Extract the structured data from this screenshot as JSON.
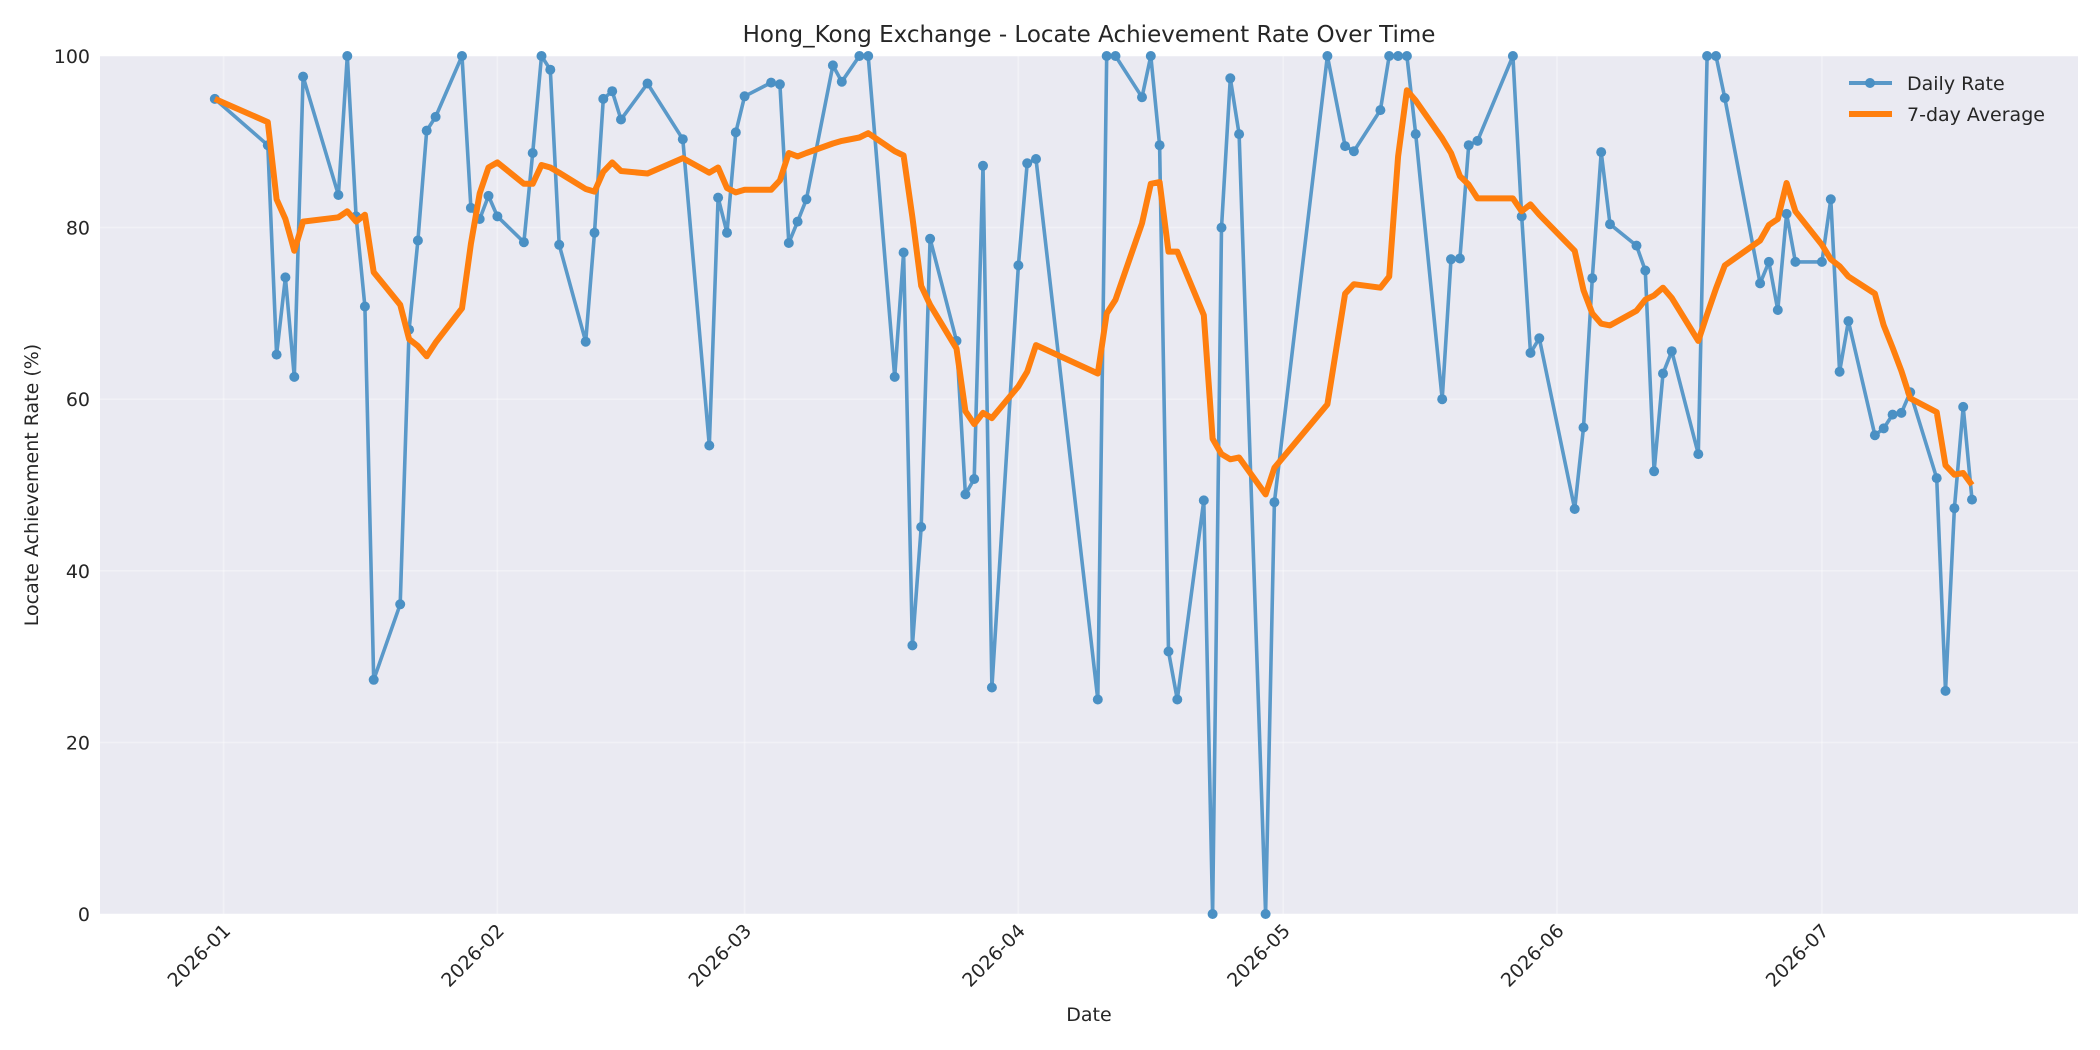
{
  "chart_data": {
    "type": "line",
    "title": "Hong_Kong Exchange - Locate Achievement Rate Over Time",
    "xlabel": "Date",
    "ylabel": "Locate Achievement Rate (%)",
    "xlim": [
      "2025-12-18",
      "2026-07-30"
    ],
    "ylim": [
      0,
      100
    ],
    "x_ticks": [
      "2026-01-01",
      "2026-02-01",
      "2026-03-01",
      "2026-04-01",
      "2026-05-01",
      "2026-06-01",
      "2026-07-01"
    ],
    "x_tick_labels": [
      "2026-01",
      "2026-02",
      "2026-03",
      "2026-04",
      "2026-05",
      "2026-06",
      "2026-07"
    ],
    "y_ticks": [
      0,
      20,
      40,
      60,
      80,
      100
    ],
    "y_tick_labels": [
      "0",
      "20",
      "40",
      "60",
      "80",
      "100"
    ],
    "grid": true,
    "legend": {
      "placement": "top-right",
      "entries": [
        "Daily Rate",
        "7-day Average"
      ]
    },
    "colors": {
      "daily": "#4a90c4",
      "average": "#ff7f0e",
      "background": "#eaeaf2"
    },
    "series": [
      {
        "name": "Daily Rate",
        "style": "line-with-markers",
        "points": [
          [
            "2025-12-31",
            95.0
          ],
          [
            "2026-01-06",
            89.6
          ],
          [
            "2026-01-07",
            65.2
          ],
          [
            "2026-01-08",
            74.2
          ],
          [
            "2026-01-09",
            62.6
          ],
          [
            "2026-01-10",
            97.6
          ],
          [
            "2026-01-14",
            83.8
          ],
          [
            "2026-01-15",
            100.0
          ],
          [
            "2026-01-16",
            81.3
          ],
          [
            "2026-01-17",
            70.8
          ],
          [
            "2026-01-18",
            27.3
          ],
          [
            "2026-01-21",
            36.1
          ],
          [
            "2026-01-22",
            68.1
          ],
          [
            "2026-01-23",
            78.5
          ],
          [
            "2026-01-24",
            91.3
          ],
          [
            "2026-01-25",
            92.9
          ],
          [
            "2026-01-28",
            100.0
          ],
          [
            "2026-01-29",
            82.3
          ],
          [
            "2026-01-30",
            81.0
          ],
          [
            "2026-01-31",
            83.7
          ],
          [
            "2026-02-01",
            81.3
          ],
          [
            "2026-02-04",
            78.3
          ],
          [
            "2026-02-05",
            88.7
          ],
          [
            "2026-02-06",
            100.0
          ],
          [
            "2026-02-07",
            98.4
          ],
          [
            "2026-02-08",
            78.0
          ],
          [
            "2026-02-11",
            66.7
          ],
          [
            "2026-02-12",
            79.4
          ],
          [
            "2026-02-13",
            95.0
          ],
          [
            "2026-02-14",
            95.9
          ],
          [
            "2026-02-15",
            92.6
          ],
          [
            "2026-02-18",
            96.8
          ],
          [
            "2026-02-22",
            90.3
          ],
          [
            "2026-02-25",
            54.6
          ],
          [
            "2026-02-26",
            83.5
          ],
          [
            "2026-02-27",
            79.4
          ],
          [
            "2026-02-28",
            91.1
          ],
          [
            "2026-03-01",
            95.3
          ],
          [
            "2026-03-04",
            96.9
          ],
          [
            "2026-03-05",
            96.7
          ],
          [
            "2026-03-06",
            78.2
          ],
          [
            "2026-03-07",
            80.7
          ],
          [
            "2026-03-08",
            83.3
          ],
          [
            "2026-03-11",
            98.9
          ],
          [
            "2026-03-12",
            97.0
          ],
          [
            "2026-03-14",
            100.0
          ],
          [
            "2026-03-15",
            100.0
          ],
          [
            "2026-03-18",
            62.6
          ],
          [
            "2026-03-19",
            77.1
          ],
          [
            "2026-03-20",
            31.3
          ],
          [
            "2026-03-21",
            45.1
          ],
          [
            "2026-03-22",
            78.7
          ],
          [
            "2026-03-25",
            66.8
          ],
          [
            "2026-03-26",
            48.9
          ],
          [
            "2026-03-27",
            50.7
          ],
          [
            "2026-03-28",
            87.2
          ],
          [
            "2026-03-29",
            26.4
          ],
          [
            "2026-04-01",
            75.6
          ],
          [
            "2026-04-02",
            87.5
          ],
          [
            "2026-04-03",
            88.0
          ],
          [
            "2026-04-10",
            25.0
          ],
          [
            "2026-04-11",
            100.0
          ],
          [
            "2026-04-12",
            100.0
          ],
          [
            "2026-04-15",
            95.2
          ],
          [
            "2026-04-16",
            100.0
          ],
          [
            "2026-04-17",
            89.6
          ],
          [
            "2026-04-18",
            30.6
          ],
          [
            "2026-04-19",
            25.0
          ],
          [
            "2026-04-22",
            48.2
          ],
          [
            "2026-04-23",
            0.0
          ],
          [
            "2026-04-24",
            80.0
          ],
          [
            "2026-04-25",
            97.4
          ],
          [
            "2026-04-26",
            90.9
          ],
          [
            "2026-04-29",
            0.0
          ],
          [
            "2026-04-30",
            48.0
          ],
          [
            "2026-05-06",
            100.0
          ],
          [
            "2026-05-08",
            89.5
          ],
          [
            "2026-05-09",
            88.9
          ],
          [
            "2026-05-12",
            93.7
          ],
          [
            "2026-05-13",
            100.0
          ],
          [
            "2026-05-14",
            100.0
          ],
          [
            "2026-05-15",
            100.0
          ],
          [
            "2026-05-16",
            90.9
          ],
          [
            "2026-05-19",
            60.0
          ],
          [
            "2026-05-20",
            76.3
          ],
          [
            "2026-05-21",
            76.4
          ],
          [
            "2026-05-22",
            89.6
          ],
          [
            "2026-05-23",
            90.1
          ],
          [
            "2026-05-27",
            100.0
          ],
          [
            "2026-05-28",
            81.3
          ],
          [
            "2026-05-29",
            65.4
          ],
          [
            "2026-05-30",
            67.1
          ],
          [
            "2026-06-03",
            47.2
          ],
          [
            "2026-06-04",
            56.7
          ],
          [
            "2026-06-05",
            74.1
          ],
          [
            "2026-06-06",
            88.8
          ],
          [
            "2026-06-07",
            80.4
          ],
          [
            "2026-06-10",
            77.9
          ],
          [
            "2026-06-11",
            75.0
          ],
          [
            "2026-06-12",
            51.6
          ],
          [
            "2026-06-13",
            63.0
          ],
          [
            "2026-06-14",
            65.6
          ],
          [
            "2026-06-17",
            53.6
          ],
          [
            "2026-06-18",
            100.0
          ],
          [
            "2026-06-19",
            100.0
          ],
          [
            "2026-06-20",
            95.1
          ],
          [
            "2026-06-24",
            73.5
          ],
          [
            "2026-06-25",
            76.0
          ],
          [
            "2026-06-26",
            70.4
          ],
          [
            "2026-06-27",
            81.6
          ],
          [
            "2026-06-28",
            76.0
          ],
          [
            "2026-07-01",
            76.0
          ],
          [
            "2026-07-02",
            83.3
          ],
          [
            "2026-07-03",
            63.2
          ],
          [
            "2026-07-04",
            69.1
          ],
          [
            "2026-07-07",
            55.8
          ],
          [
            "2026-07-08",
            56.6
          ],
          [
            "2026-07-09",
            58.2
          ],
          [
            "2026-07-10",
            58.4
          ],
          [
            "2026-07-11",
            60.8
          ],
          [
            "2026-07-14",
            50.8
          ],
          [
            "2026-07-15",
            26.0
          ],
          [
            "2026-07-16",
            47.3
          ],
          [
            "2026-07-17",
            59.1
          ],
          [
            "2026-07-18",
            48.3
          ]
        ]
      },
      {
        "name": "7-day Average",
        "style": "thick-line",
        "points": [
          [
            "2025-12-31",
            95.0
          ],
          [
            "2026-01-06",
            92.3
          ],
          [
            "2026-01-07",
            83.3
          ],
          [
            "2026-01-08",
            81.0
          ],
          [
            "2026-01-09",
            77.3
          ],
          [
            "2026-01-10",
            80.7
          ],
          [
            "2026-01-14",
            81.2
          ],
          [
            "2026-01-15",
            81.9
          ],
          [
            "2026-01-16",
            80.7
          ],
          [
            "2026-01-17",
            81.5
          ],
          [
            "2026-01-18",
            74.8
          ],
          [
            "2026-01-21",
            71.0
          ],
          [
            "2026-01-22",
            67.0
          ],
          [
            "2026-01-23",
            66.2
          ],
          [
            "2026-01-24",
            65.0
          ],
          [
            "2026-01-25",
            66.6
          ],
          [
            "2026-01-28",
            70.6
          ],
          [
            "2026-01-29",
            78.1
          ],
          [
            "2026-01-30",
            84.0
          ],
          [
            "2026-01-31",
            87.0
          ],
          [
            "2026-02-01",
            87.6
          ],
          [
            "2026-02-04",
            85.1
          ],
          [
            "2026-02-05",
            85.1
          ],
          [
            "2026-02-06",
            87.3
          ],
          [
            "2026-02-07",
            87.0
          ],
          [
            "2026-02-08",
            86.4
          ],
          [
            "2026-02-11",
            84.5
          ],
          [
            "2026-02-12",
            84.2
          ],
          [
            "2026-02-13",
            86.5
          ],
          [
            "2026-02-14",
            87.6
          ],
          [
            "2026-02-15",
            86.6
          ],
          [
            "2026-02-18",
            86.3
          ],
          [
            "2026-02-22",
            88.1
          ],
          [
            "2026-02-25",
            86.4
          ],
          [
            "2026-02-26",
            87.0
          ],
          [
            "2026-02-27",
            84.6
          ],
          [
            "2026-02-28",
            84.1
          ],
          [
            "2026-03-01",
            84.4
          ],
          [
            "2026-03-04",
            84.4
          ],
          [
            "2026-03-05",
            85.5
          ],
          [
            "2026-03-06",
            88.7
          ],
          [
            "2026-03-07",
            88.3
          ],
          [
            "2026-03-08",
            88.7
          ],
          [
            "2026-03-11",
            89.8
          ],
          [
            "2026-03-12",
            90.1
          ],
          [
            "2026-03-14",
            90.5
          ],
          [
            "2026-03-15",
            91.0
          ],
          [
            "2026-03-18",
            88.9
          ],
          [
            "2026-03-19",
            88.4
          ],
          [
            "2026-03-20",
            81.2
          ],
          [
            "2026-03-21",
            73.2
          ],
          [
            "2026-03-22",
            71.0
          ],
          [
            "2026-03-25",
            65.9
          ],
          [
            "2026-03-26",
            58.6
          ],
          [
            "2026-03-27",
            57.1
          ],
          [
            "2026-03-28",
            58.4
          ],
          [
            "2026-03-29",
            57.8
          ],
          [
            "2026-04-01",
            61.5
          ],
          [
            "2026-04-02",
            63.2
          ],
          [
            "2026-04-03",
            66.3
          ],
          [
            "2026-04-10",
            63.0
          ],
          [
            "2026-04-11",
            70.0
          ],
          [
            "2026-04-12",
            71.6
          ],
          [
            "2026-04-15",
            80.5
          ],
          [
            "2026-04-16",
            85.1
          ],
          [
            "2026-04-17",
            85.3
          ],
          [
            "2026-04-18",
            77.2
          ],
          [
            "2026-04-19",
            77.2
          ],
          [
            "2026-04-22",
            69.8
          ],
          [
            "2026-04-23",
            55.4
          ],
          [
            "2026-04-24",
            53.6
          ],
          [
            "2026-04-25",
            53.0
          ],
          [
            "2026-04-26",
            53.2
          ],
          [
            "2026-04-29",
            48.9
          ],
          [
            "2026-04-30",
            52.0
          ],
          [
            "2026-05-06",
            59.4
          ],
          [
            "2026-05-08",
            72.3
          ],
          [
            "2026-05-09",
            73.4
          ],
          [
            "2026-05-12",
            73.0
          ],
          [
            "2026-05-13",
            74.3
          ],
          [
            "2026-05-14",
            88.3
          ],
          [
            "2026-05-15",
            96.0
          ],
          [
            "2026-05-16",
            94.8
          ],
          [
            "2026-05-19",
            90.4
          ],
          [
            "2026-05-20",
            88.7
          ],
          [
            "2026-05-21",
            86.0
          ],
          [
            "2026-05-22",
            85.0
          ],
          [
            "2026-05-23",
            83.4
          ],
          [
            "2026-05-27",
            83.4
          ],
          [
            "2026-05-28",
            81.9
          ],
          [
            "2026-05-29",
            82.7
          ],
          [
            "2026-05-30",
            81.5
          ],
          [
            "2026-06-03",
            77.3
          ],
          [
            "2026-06-04",
            72.7
          ],
          [
            "2026-06-05",
            70.0
          ],
          [
            "2026-06-06",
            68.8
          ],
          [
            "2026-06-07",
            68.6
          ],
          [
            "2026-06-10",
            70.3
          ],
          [
            "2026-06-11",
            71.6
          ],
          [
            "2026-06-12",
            72.1
          ],
          [
            "2026-06-13",
            73.0
          ],
          [
            "2026-06-14",
            71.8
          ],
          [
            "2026-06-17",
            66.8
          ],
          [
            "2026-06-18",
            69.9
          ],
          [
            "2026-06-19",
            72.9
          ],
          [
            "2026-06-20",
            75.6
          ],
          [
            "2026-06-24",
            78.5
          ],
          [
            "2026-06-25",
            80.3
          ],
          [
            "2026-06-26",
            81.0
          ],
          [
            "2026-06-27",
            85.2
          ],
          [
            "2026-06-28",
            81.9
          ],
          [
            "2026-07-01",
            78.0
          ],
          [
            "2026-07-02",
            76.3
          ],
          [
            "2026-07-03",
            75.5
          ],
          [
            "2026-07-04",
            74.3
          ],
          [
            "2026-07-07",
            72.3
          ],
          [
            "2026-07-08",
            68.6
          ],
          [
            "2026-07-09",
            66.0
          ],
          [
            "2026-07-10",
            63.3
          ],
          [
            "2026-07-11",
            60.1
          ],
          [
            "2026-07-14",
            58.5
          ],
          [
            "2026-07-15",
            52.3
          ],
          [
            "2026-07-16",
            51.2
          ],
          [
            "2026-07-17",
            51.4
          ],
          [
            "2026-07-18",
            50.0
          ]
        ]
      }
    ]
  }
}
